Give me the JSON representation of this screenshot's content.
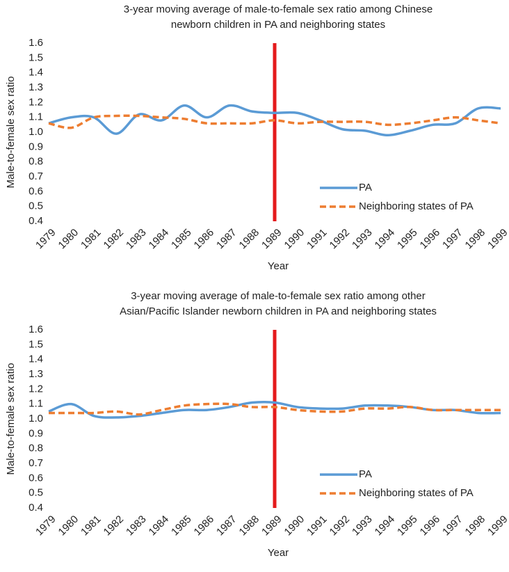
{
  "chart_data": [
    {
      "type": "line",
      "title": [
        "3-year moving average of male-to-female sex ratio among Chinese",
        "newborn children in PA and neighboring states"
      ],
      "x_label": "Year",
      "y_label": "Male-to-female sex ratio",
      "categories": [
        "1979",
        "1980",
        "1981",
        "1982",
        "1983",
        "1984",
        "1985",
        "1986",
        "1987",
        "1988",
        "1989",
        "1990",
        "1991",
        "1992",
        "1993",
        "1994",
        "1995",
        "1996",
        "1997",
        "1998",
        "1999"
      ],
      "series": [
        {
          "name": "PA",
          "color": "#5b9bd5",
          "dashed": false,
          "values": [
            1.06,
            1.1,
            1.1,
            0.99,
            1.12,
            1.08,
            1.18,
            1.1,
            1.18,
            1.14,
            1.13,
            1.13,
            1.08,
            1.02,
            1.01,
            0.98,
            1.01,
            1.05,
            1.06,
            1.16,
            1.16
          ]
        },
        {
          "name": "Neighboring states of PA",
          "color": "#ed7d31",
          "dashed": true,
          "values": [
            1.06,
            1.03,
            1.1,
            1.11,
            1.11,
            1.1,
            1.09,
            1.06,
            1.06,
            1.06,
            1.08,
            1.06,
            1.07,
            1.07,
            1.07,
            1.05,
            1.06,
            1.08,
            1.1,
            1.08,
            1.06
          ]
        }
      ],
      "ylim": [
        0.4,
        1.6
      ],
      "yticks": [
        0.4,
        0.5,
        0.6,
        0.7,
        0.8,
        0.9,
        {
          "value": 1,
          "label": "1.0"
        },
        1.1,
        1.2,
        1.3,
        1.4,
        1.5,
        1.6
      ],
      "reference_line": {
        "x": "1989",
        "color": "#e41a1c"
      },
      "legend": "lower right"
    },
    {
      "type": "line",
      "title": [
        "3-year moving average of male-to-female sex ratio among other",
        "Asian/Pacific Islander newborn children in PA and neighboring states"
      ],
      "x_label": "Year",
      "y_label": "Male-to-female sex ratio",
      "categories": [
        "1979",
        "1980",
        "1981",
        "1982",
        "1983",
        "1984",
        "1985",
        "1986",
        "1987",
        "1988",
        "1989",
        "1990",
        "1991",
        "1992",
        "1993",
        "1994",
        "1995",
        "1996",
        "1997",
        "1998",
        "1999"
      ],
      "series": [
        {
          "name": "PA",
          "color": "#5b9bd5",
          "dashed": false,
          "values": [
            1.05,
            1.1,
            1.02,
            1.01,
            1.02,
            1.04,
            1.06,
            1.06,
            1.08,
            1.11,
            1.11,
            1.08,
            1.07,
            1.07,
            1.09,
            1.09,
            1.08,
            1.06,
            1.06,
            1.04,
            1.04
          ]
        },
        {
          "name": "Neighboring states of PA",
          "color": "#ed7d31",
          "dashed": true,
          "values": [
            1.04,
            1.04,
            1.04,
            1.05,
            1.03,
            1.06,
            1.09,
            1.1,
            1.1,
            1.08,
            1.08,
            1.06,
            1.05,
            1.05,
            1.07,
            1.07,
            1.08,
            1.06,
            1.06,
            1.06,
            1.06
          ]
        }
      ],
      "ylim": [
        0.4,
        1.6
      ],
      "yticks": [
        0.4,
        0.5,
        0.6,
        0.7,
        0.8,
        0.9,
        {
          "value": 1,
          "label": "1.0"
        },
        1.1,
        1.2,
        1.3,
        1.4,
        1.5,
        1.6
      ],
      "reference_line": {
        "x": "1989",
        "color": "#e41a1c"
      },
      "legend": "lower right"
    }
  ]
}
